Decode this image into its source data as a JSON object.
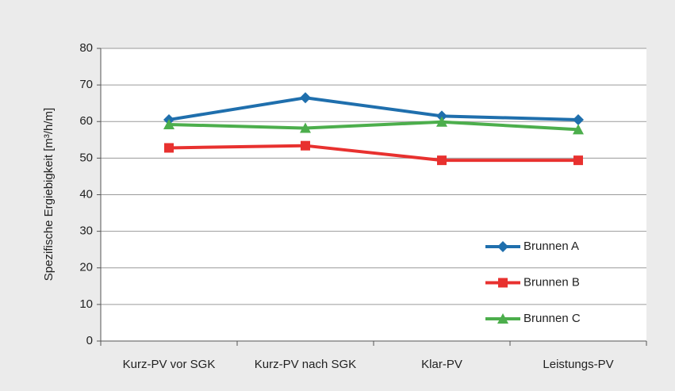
{
  "chart_data": {
    "type": "line",
    "y_label": "Spezifische Ergiebigkeit [m³/h/m]",
    "categories": [
      "Kurz-PV vor SGK",
      "Kurz-PV nach SGK",
      "Klar-PV",
      "Leistungs-PV"
    ],
    "series": [
      {
        "name": "Brunnen A",
        "color": "#1f6fad",
        "marker": "diamond",
        "values": [
          60.5,
          66.5,
          61.5,
          60.5
        ]
      },
      {
        "name": "Brunnen B",
        "color": "#e8312f",
        "marker": "square",
        "values": [
          52.8,
          53.4,
          49.4,
          49.4
        ]
      },
      {
        "name": "Brunnen C",
        "color": "#4cae4c",
        "marker": "triangle",
        "values": [
          59.2,
          58.2,
          59.9,
          57.8
        ]
      }
    ],
    "ylim": [
      0,
      80
    ],
    "yticks": [
      0,
      10,
      20,
      30,
      40,
      50,
      60,
      70,
      80
    ],
    "grid": true,
    "legend": "lower right"
  }
}
